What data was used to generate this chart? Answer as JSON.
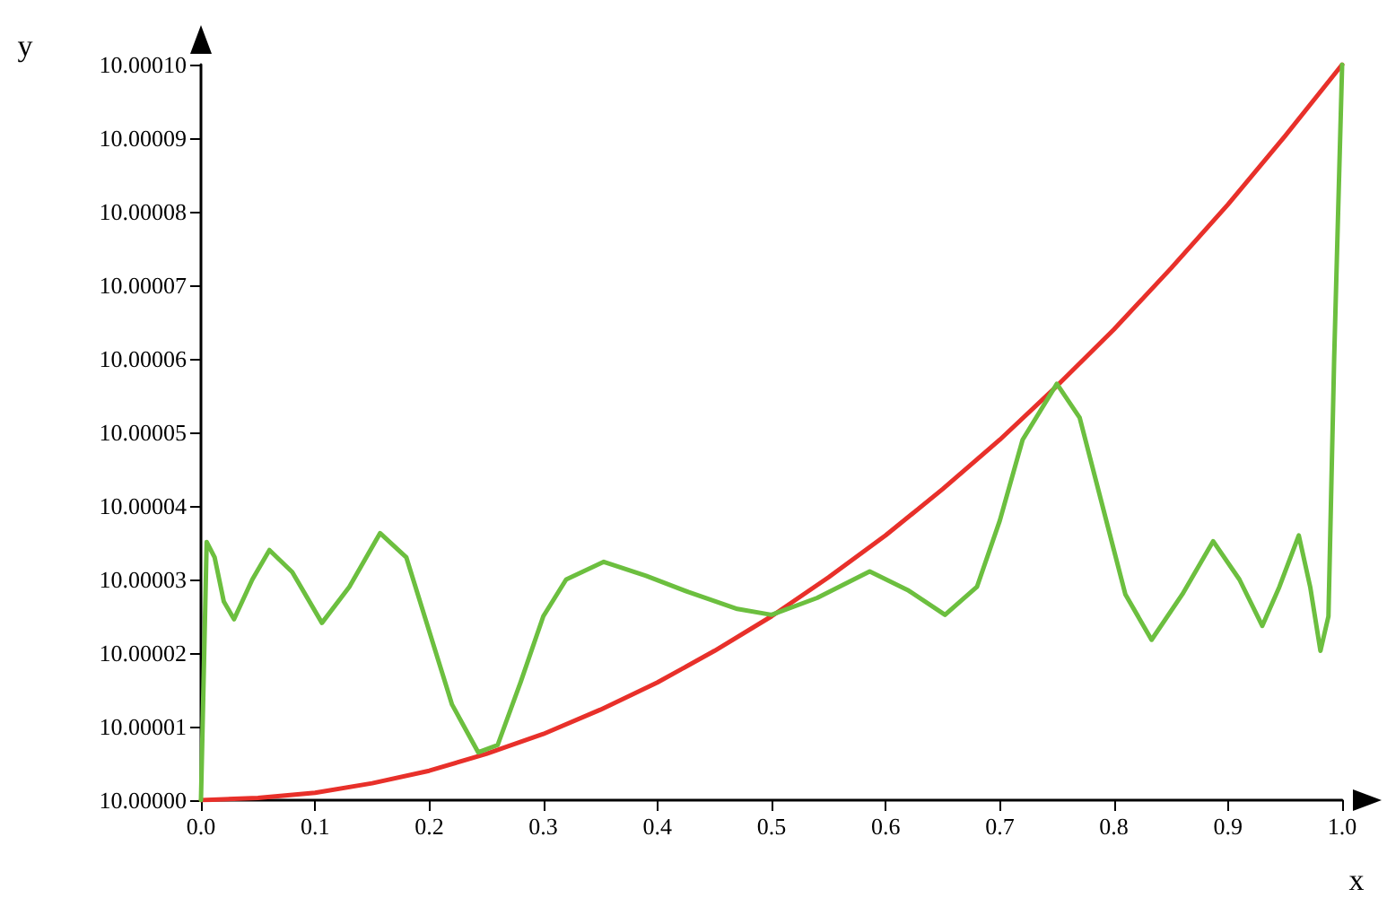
{
  "chart_data": {
    "type": "line",
    "xlabel": "x",
    "ylabel": "y",
    "xlim": [
      0,
      1
    ],
    "ylim": [
      10,
      10.0001
    ],
    "xticks": [
      {
        "value": 0,
        "label": "0.0"
      },
      0.1,
      0.2,
      0.3,
      0.4,
      0.5,
      0.6,
      0.7,
      0.8,
      0.9,
      {
        "value": 1,
        "label": "1.0"
      }
    ],
    "yticks": [
      {
        "value": 10,
        "label": "10.00000"
      },
      10.00001,
      10.00002,
      10.00003,
      10.00004,
      10.00005,
      10.00006,
      10.00007,
      10.00008,
      10.00009,
      {
        "value": 10.0001,
        "label": "10.00010"
      }
    ],
    "grid": false,
    "marker": "none",
    "line_style": "solid",
    "series": [
      {
        "color": "#e8302a",
        "x": [
          0,
          0.05,
          0.1,
          0.15,
          0.2,
          0.25,
          0.3,
          0.35,
          0.4,
          0.45,
          0.5,
          0.55,
          0.6,
          0.65,
          0.7,
          0.75,
          0.8,
          0.85,
          0.9,
          0.95,
          1
        ],
        "values": [
          10,
          10.0000003,
          10.000001,
          10.0000023,
          10.000004,
          10.0000063,
          10.000009,
          10.0000123,
          10.000016,
          10.0000203,
          10.000025,
          10.0000303,
          10.000036,
          10.0000423,
          10.000049,
          10.0000563,
          10.000064,
          10.0000723,
          10.000081,
          10.0000903,
          10.0001
        ]
      },
      {
        "color": "#6cbf3f",
        "x": [
          0,
          0.005,
          0.012,
          0.02,
          0.029,
          0.045,
          0.06,
          0.08,
          0.106,
          0.13,
          0.157,
          0.18,
          0.2,
          0.22,
          0.243,
          0.26,
          0.28,
          0.3,
          0.32,
          0.353,
          0.39,
          0.427,
          0.47,
          0.5,
          0.54,
          0.586,
          0.62,
          0.652,
          0.68,
          0.7,
          0.72,
          0.75,
          0.77,
          0.79,
          0.81,
          0.833,
          0.86,
          0.887,
          0.91,
          0.93,
          0.945,
          0.962,
          0.972,
          0.981,
          0.988,
          0.993,
          1
        ],
        "values": [
          10,
          10.0000351,
          10.000033,
          10.000027,
          10.0000246,
          10.00003,
          10.000034,
          10.000031,
          10.0000241,
          10.000029,
          10.0000363,
          10.000033,
          10.000023,
          10.000013,
          10.0000065,
          10.0000075,
          10.000016,
          10.000025,
          10.00003,
          10.0000324,
          10.0000305,
          10.0000283,
          10.000026,
          10.0000252,
          10.0000275,
          10.0000311,
          10.0000285,
          10.0000252,
          10.000029,
          10.000038,
          10.000049,
          10.0000566,
          10.000052,
          10.00004,
          10.000028,
          10.0000218,
          10.000028,
          10.0000352,
          10.00003,
          10.0000237,
          10.000029,
          10.000036,
          10.000029,
          10.0000203,
          10.000025,
          10.00006,
          10.0001
        ]
      }
    ]
  }
}
